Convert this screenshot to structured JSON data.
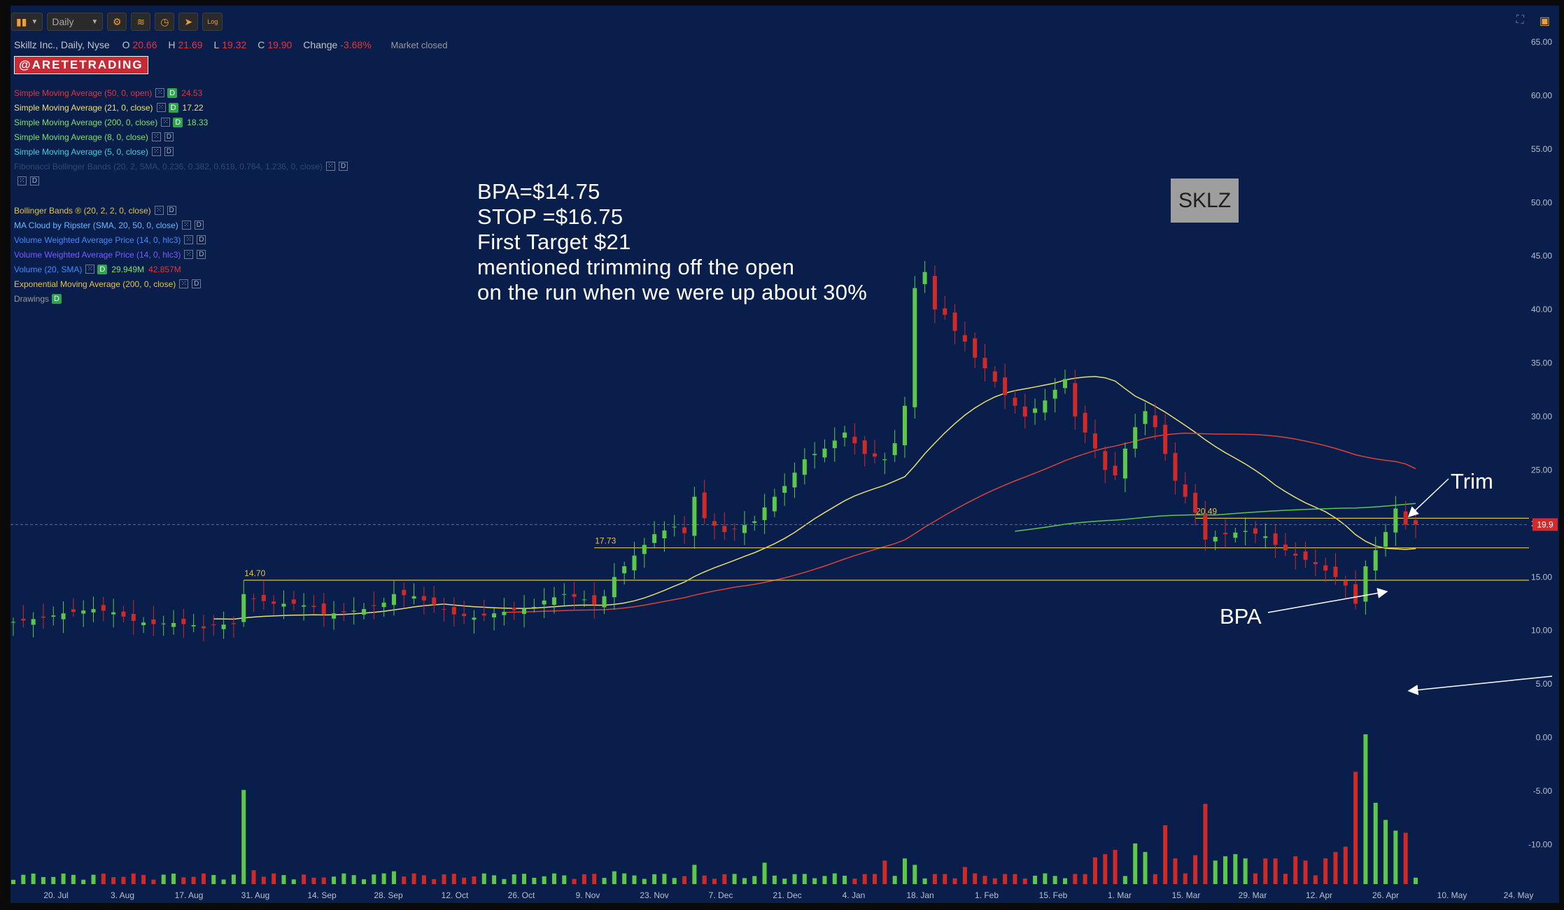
{
  "toolbar": {
    "chart_style_icon": "candles-icon",
    "aggregation": "Daily",
    "settings_icon": "gear-icon",
    "studies_icon": "studies-icon",
    "clock_icon": "clock-icon",
    "drawing_icon": "crosshair-icon",
    "log_label": "Log"
  },
  "header": {
    "symbol_desc": "Skillz Inc., Daily, Nyse",
    "o_label": "O",
    "o_value": "20.66",
    "h_label": "H",
    "h_value": "21.69",
    "l_label": "L",
    "l_value": "19.32",
    "c_label": "C",
    "c_value": "19.90",
    "change_label": "Change",
    "change_value": "-3.68%",
    "market_status": "Market closed"
  },
  "brand": "@ARETETRADING",
  "studies": [
    {
      "label": "Simple Moving Average (50, 0, open)",
      "color": "#e2363b",
      "d": true,
      "value": "24.53",
      "value_color": "#e2363b"
    },
    {
      "label": "Simple Moving Average (21, 0, close)",
      "color": "#e8e07a",
      "d": true,
      "value": "17.22",
      "value_color": "#e8e07a"
    },
    {
      "label": "Simple Moving Average (200, 0, close)",
      "color": "#7ee06f",
      "d": true,
      "value": "18.33",
      "value_color": "#7ee06f"
    },
    {
      "label": "Simple Moving Average (8, 0, close)",
      "color": "#7ee06f",
      "d": false,
      "value": "",
      "value_color": "#7ee06f"
    },
    {
      "label": "Simple Moving Average (5, 0, close)",
      "color": "#3fd0e0",
      "d": false,
      "value": "",
      "value_color": "#3fd0e0"
    },
    {
      "label": "Fibonacci Bollinger Bands (20, 2, SMA, 0.236, 0.382, 0.618, 0.764, 1.236, 0, close)",
      "color": "#2c4a7a",
      "d": false,
      "value": "",
      "value_color": "#2c4a7a"
    },
    {
      "label": "",
      "color": "#2c4a7a",
      "d": false,
      "value": "",
      "value_color": "#2c4a7a"
    },
    {
      "label": "Bollinger Bands ® (20, 2, 2, 0, close)",
      "color": "#e6c34a",
      "d": false,
      "value": "",
      "value_color": "#e6c34a",
      "gap": true
    },
    {
      "label": "MA Cloud by Ripster (SMA, 20, 50, 0, close)",
      "color": "#6ab7ff",
      "d": false,
      "value": "",
      "value_color": "#6ab7ff"
    },
    {
      "label": "Volume Weighted Average Price (14, 0, hlc3)",
      "color": "#3d8cff",
      "d": false,
      "value": "",
      "value_color": "#3d8cff"
    },
    {
      "label": "Volume Weighted Average Price (14, 0, hlc3)",
      "color": "#7b5cff",
      "d": false,
      "value": "",
      "value_color": "#7b5cff"
    },
    {
      "label": "Volume (20, SMA)",
      "color": "#3d8cff",
      "d": true,
      "value": "29.949M",
      "value_color": "#7ee06f",
      "value2": "42.857M",
      "value2_color": "#e2363b"
    },
    {
      "label": "Exponential Moving Average (200, 0, close)",
      "color": "#e6c34a",
      "d": false,
      "value": "",
      "value_color": "#e6c34a"
    },
    {
      "label": "Drawings",
      "color": "#9a9a9a",
      "d": true,
      "value": "",
      "value_color": "#9a9a9a",
      "no_btn": true
    }
  ],
  "annotation": {
    "lines": [
      "BPA=$14.75",
      "STOP =$16.75",
      "First Target $21",
      "mentioned trimming off the open",
      "on the run when we were up about 30%"
    ]
  },
  "symbol_box": "SKLZ",
  "labels": {
    "trim": "Trim",
    "bpa": "BPA"
  },
  "colors": {
    "background": "#0a1e4b",
    "up": "#5cc84a",
    "down": "#cf2a27",
    "hline": "#d2c24a",
    "sma50": "#d9443a",
    "sma21": "#e8dd72",
    "sma200": "#5cc84a"
  },
  "chart_data": {
    "type": "candlestick",
    "y_ticks": [
      "65.00",
      "60.00",
      "55.00",
      "50.00",
      "45.00",
      "40.00",
      "35.00",
      "30.00",
      "25.00",
      "20.00",
      "15.00",
      "10.00",
      "5.00",
      "0.00",
      "-5.00",
      "-10.00"
    ],
    "ylim": [
      -13.7,
      68.4
    ],
    "x_labels": [
      "20. Jul",
      "3. Aug",
      "17. Aug",
      "31. Aug",
      "14. Sep",
      "28. Sep",
      "12. Oct",
      "26. Oct",
      "9. Nov",
      "23. Nov",
      "7. Dec",
      "21. Dec",
      "4. Jan",
      "18. Jan",
      "1. Feb",
      "15. Feb",
      "1. Mar",
      "15. Mar",
      "29. Mar",
      "12. Apr",
      "26. Apr",
      "10. May",
      "24. May"
    ],
    "last_price": "19.9",
    "price_levels": [
      {
        "label": "14.70",
        "value": 14.7
      },
      {
        "label": "17.73",
        "value": 17.73
      },
      {
        "label": "20.49",
        "value": 20.49
      }
    ],
    "close_path": [
      [
        0,
        10.8
      ],
      [
        3,
        11.2
      ],
      [
        5,
        11.6
      ],
      [
        8,
        12.0
      ],
      [
        10,
        11.7
      ],
      [
        12,
        10.9
      ],
      [
        14,
        10.6
      ],
      [
        16,
        10.7
      ],
      [
        18,
        10.5
      ],
      [
        19,
        10.2
      ],
      [
        20,
        10.5
      ],
      [
        22,
        10.6
      ],
      [
        23,
        13.4
      ],
      [
        24,
        13.0
      ],
      [
        26,
        12.5
      ],
      [
        28,
        12.5
      ],
      [
        30,
        12.2
      ],
      [
        31,
        11.5
      ],
      [
        33,
        11.7
      ],
      [
        35,
        12.0
      ],
      [
        37,
        12.6
      ],
      [
        38,
        13.4
      ],
      [
        40,
        13.2
      ],
      [
        42,
        12.4
      ],
      [
        44,
        11.5
      ],
      [
        46,
        11.2
      ],
      [
        48,
        11.6
      ],
      [
        50,
        11.9
      ],
      [
        52,
        12.2
      ],
      [
        53,
        12.8
      ],
      [
        55,
        13.4
      ],
      [
        57,
        12.9
      ],
      [
        58,
        12.4
      ],
      [
        59,
        13.2
      ],
      [
        60,
        15.0
      ],
      [
        62,
        17.0
      ],
      [
        64,
        19.0
      ],
      [
        66,
        19.7
      ],
      [
        67,
        19.1
      ],
      [
        68,
        22.5
      ],
      [
        69,
        20.5
      ],
      [
        70,
        19.8
      ],
      [
        71,
        19.2
      ],
      [
        72,
        19.5
      ],
      [
        74,
        20.2
      ],
      [
        75,
        21.5
      ],
      [
        77,
        23.5
      ],
      [
        79,
        26.0
      ],
      [
        81,
        27.0
      ],
      [
        83,
        28.5
      ],
      [
        85,
        26.5
      ],
      [
        87,
        26.0
      ],
      [
        88,
        27.5
      ],
      [
        89,
        31.0
      ],
      [
        90,
        42.0
      ],
      [
        91,
        43.5
      ],
      [
        92,
        40.0
      ],
      [
        93,
        39.5
      ],
      [
        94,
        38.0
      ],
      [
        95,
        37.0
      ],
      [
        96,
        35.5
      ],
      [
        97,
        34.5
      ],
      [
        99,
        32.0
      ],
      [
        101,
        30.0
      ],
      [
        103,
        31.5
      ],
      [
        105,
        33.5
      ],
      [
        106,
        30.0
      ],
      [
        108,
        27.0
      ],
      [
        109,
        25.0
      ],
      [
        110,
        24.5
      ],
      [
        111,
        27.0
      ],
      [
        112,
        29.0
      ],
      [
        113,
        30.5
      ],
      [
        114,
        29.0
      ],
      [
        115,
        26.5
      ],
      [
        116,
        24.0
      ],
      [
        118,
        21.0
      ],
      [
        119,
        18.5
      ],
      [
        121,
        19.0
      ],
      [
        123,
        19.3
      ],
      [
        125,
        18.8
      ],
      [
        126,
        18.0
      ],
      [
        128,
        17.0
      ],
      [
        130,
        16.2
      ],
      [
        132,
        15.0
      ],
      [
        133,
        14.2
      ],
      [
        134,
        12.5
      ],
      [
        135,
        16.0
      ],
      [
        136,
        17.5
      ],
      [
        137,
        19.2
      ],
      [
        138,
        21.4
      ],
      [
        139,
        19.9
      ]
    ],
    "volume_heights": [
      [
        0,
        0.4
      ],
      [
        23,
        8.8
      ],
      [
        24,
        1.3
      ],
      [
        30,
        0.6
      ],
      [
        37,
        1.0
      ],
      [
        38,
        1.2
      ],
      [
        60,
        1.2
      ],
      [
        68,
        1.8
      ],
      [
        75,
        2.0
      ],
      [
        87,
        2.2
      ],
      [
        89,
        2.4
      ],
      [
        90,
        1.8
      ],
      [
        95,
        1.6
      ],
      [
        108,
        2.5
      ],
      [
        109,
        2.8
      ],
      [
        110,
        3.2
      ],
      [
        112,
        3.8
      ],
      [
        113,
        3.0
      ],
      [
        115,
        5.5
      ],
      [
        116,
        2.4
      ],
      [
        118,
        2.7
      ],
      [
        119,
        7.5
      ],
      [
        120,
        2.2
      ],
      [
        121,
        2.6
      ],
      [
        122,
        2.8
      ],
      [
        123,
        2.4
      ],
      [
        125,
        2.4
      ],
      [
        126,
        2.4
      ],
      [
        128,
        2.6
      ],
      [
        129,
        2.2
      ],
      [
        131,
        2.4
      ],
      [
        132,
        3.0
      ],
      [
        133,
        3.5
      ],
      [
        134,
        10.5
      ],
      [
        135,
        14.0
      ],
      [
        136,
        7.6
      ],
      [
        137,
        6.0
      ],
      [
        138,
        5.0
      ],
      [
        139,
        4.8
      ]
    ]
  }
}
